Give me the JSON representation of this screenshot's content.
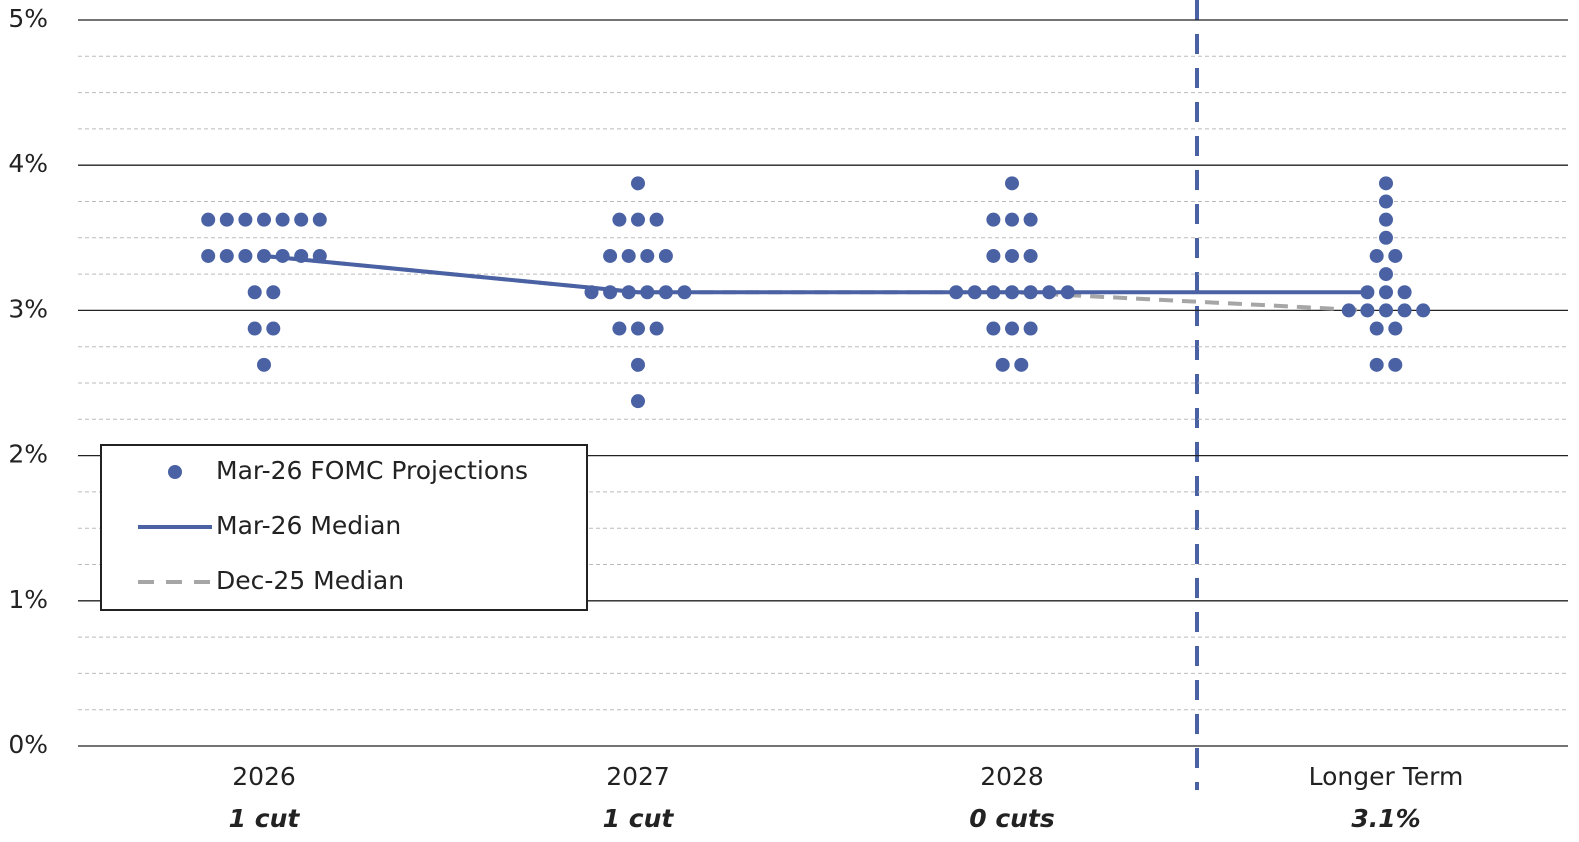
{
  "chart_data": {
    "type": "dot_plot",
    "categories": [
      "2026",
      "2027",
      "2028",
      "Longer Term"
    ],
    "category_notes": [
      "1 cut",
      "1 cut",
      "0 cuts",
      "3.1%"
    ],
    "ylim": [
      0,
      5
    ],
    "yticks": [
      {
        "value": 0,
        "label": "0%"
      },
      {
        "value": 1,
        "label": "1%"
      },
      {
        "value": 2,
        "label": "2%"
      },
      {
        "value": 3,
        "label": "3%"
      },
      {
        "value": 4,
        "label": "4%"
      },
      {
        "value": 5,
        "label": "5%"
      }
    ],
    "minor_yticks": [
      0.25,
      0.5,
      0.75,
      1.25,
      1.5,
      1.75,
      2.25,
      2.5,
      2.75,
      3.25,
      3.5,
      3.75,
      4.25,
      4.5,
      4.75
    ],
    "grid": true,
    "series": [
      {
        "name": "Mar-26 FOMC Projections",
        "type": "dots",
        "color": "#4a62a4",
        "values": [
          [
            3.625,
            3.625,
            3.625,
            3.625,
            3.625,
            3.625,
            3.625,
            3.375,
            3.375,
            3.375,
            3.375,
            3.375,
            3.375,
            3.375,
            3.125,
            3.125,
            2.875,
            2.875,
            2.625
          ],
          [
            3.875,
            3.625,
            3.625,
            3.625,
            3.375,
            3.375,
            3.375,
            3.375,
            3.125,
            3.125,
            3.125,
            3.125,
            3.125,
            3.125,
            2.875,
            2.875,
            2.875,
            2.625,
            2.375
          ],
          [
            3.875,
            3.625,
            3.625,
            3.625,
            3.375,
            3.375,
            3.375,
            3.125,
            3.125,
            3.125,
            3.125,
            3.125,
            3.125,
            3.125,
            2.875,
            2.875,
            2.875,
            2.625,
            2.625
          ],
          [
            3.875,
            3.75,
            3.625,
            3.5,
            3.375,
            3.375,
            3.25,
            3.125,
            3.125,
            3.125,
            3.0,
            3.0,
            3.0,
            3.0,
            3.0,
            2.875,
            2.875,
            2.625,
            2.625
          ]
        ]
      },
      {
        "name": "Mar-26 Median",
        "type": "line",
        "color": "#4a62a4",
        "values": [
          3.375,
          3.125,
          3.125,
          3.125
        ]
      },
      {
        "name": "Dec-25 Median",
        "type": "dashed",
        "color": "#a6a6a6",
        "values": [
          3.375,
          3.125,
          3.125,
          3.0
        ]
      }
    ]
  }
}
